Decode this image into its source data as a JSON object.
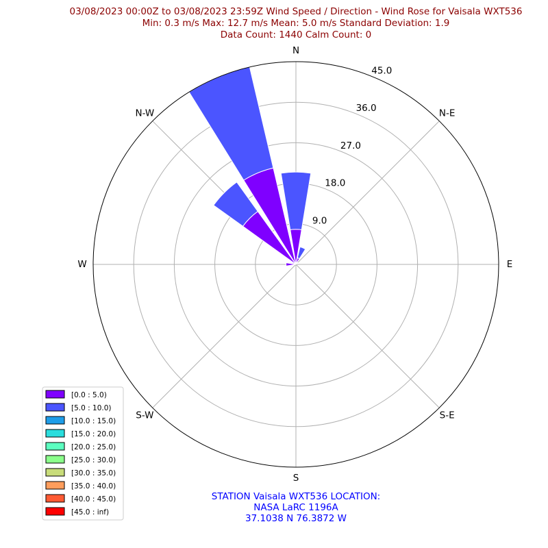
{
  "chart_data": {
    "type": "wind-rose",
    "title_lines": [
      "03/08/2023 00:00Z to 03/08/2023 23:59Z Wind Speed / Direction - Wind Rose for Vaisala WXT536",
      "Min: 0.3 m/s   Max: 12.7 m/s   Mean: 5.0 m/s  Standard Deviation: 1.9",
      "Data Count: 1440  Calm Count:  0"
    ],
    "directions": [
      {
        "label": "N",
        "angle": 0
      },
      {
        "label": "N-E",
        "angle": 45
      },
      {
        "label": "E",
        "angle": 90
      },
      {
        "label": "S-E",
        "angle": 135
      },
      {
        "label": "S",
        "angle": 180
      },
      {
        "label": "S-W",
        "angle": 225
      },
      {
        "label": "W",
        "angle": 270
      },
      {
        "label": "N-W",
        "angle": 315
      }
    ],
    "radial_ticks": [
      9.0,
      18.0,
      27.0,
      36.0,
      45.0
    ],
    "radial_tick_labels": [
      "9.0",
      "18.0",
      "27.0",
      "36.0",
      "45.0"
    ],
    "rmax": 45.0,
    "bins": [
      {
        "label": "[0.0 : 5.0)",
        "color": "#7f00ff"
      },
      {
        "label": "[5.0 : 10.0)",
        "color": "#4b55ff"
      },
      {
        "label": "[10.0 : 15.0)",
        "color": "#1e9de8"
      },
      {
        "label": "[15.0 : 20.0)",
        "color": "#2adddd"
      },
      {
        "label": "[20.0 : 25.0)",
        "color": "#5cffc0"
      },
      {
        "label": "[25.0 : 30.0)",
        "color": "#8bff8b"
      },
      {
        "label": "[30.0 : 35.0)",
        "color": "#c8dc7a"
      },
      {
        "label": "[35.0 : 40.0)",
        "color": "#ff9d5c"
      },
      {
        "label": "[40.0 : 45.0)",
        "color": "#ff5a33"
      },
      {
        "label": "[45.0 : inf)",
        "color": "#ff0000"
      }
    ],
    "sectors": [
      {
        "direction_deg": 0,
        "cumulative": [
          7.8,
          20.5
        ]
      },
      {
        "direction_deg": 22.5,
        "cumulative": [
          1.5,
          4.0
        ]
      },
      {
        "direction_deg": 45,
        "cumulative": [
          0.6,
          0.6
        ]
      },
      {
        "direction_deg": 270,
        "cumulative": [
          2.2,
          2.2
        ]
      },
      {
        "direction_deg": 292.5,
        "cumulative": [
          0.8,
          0.8
        ]
      },
      {
        "direction_deg": 315,
        "cumulative": [
          14.5,
          22.5
        ]
      },
      {
        "direction_deg": 337.5,
        "cumulative": [
          22.0,
          45.0
        ]
      }
    ]
  },
  "station": {
    "lines": [
      "STATION Vaisala WXT536 LOCATION:",
      "NASA LaRC 1196A",
      "37.1038 N 76.3872 W"
    ]
  }
}
